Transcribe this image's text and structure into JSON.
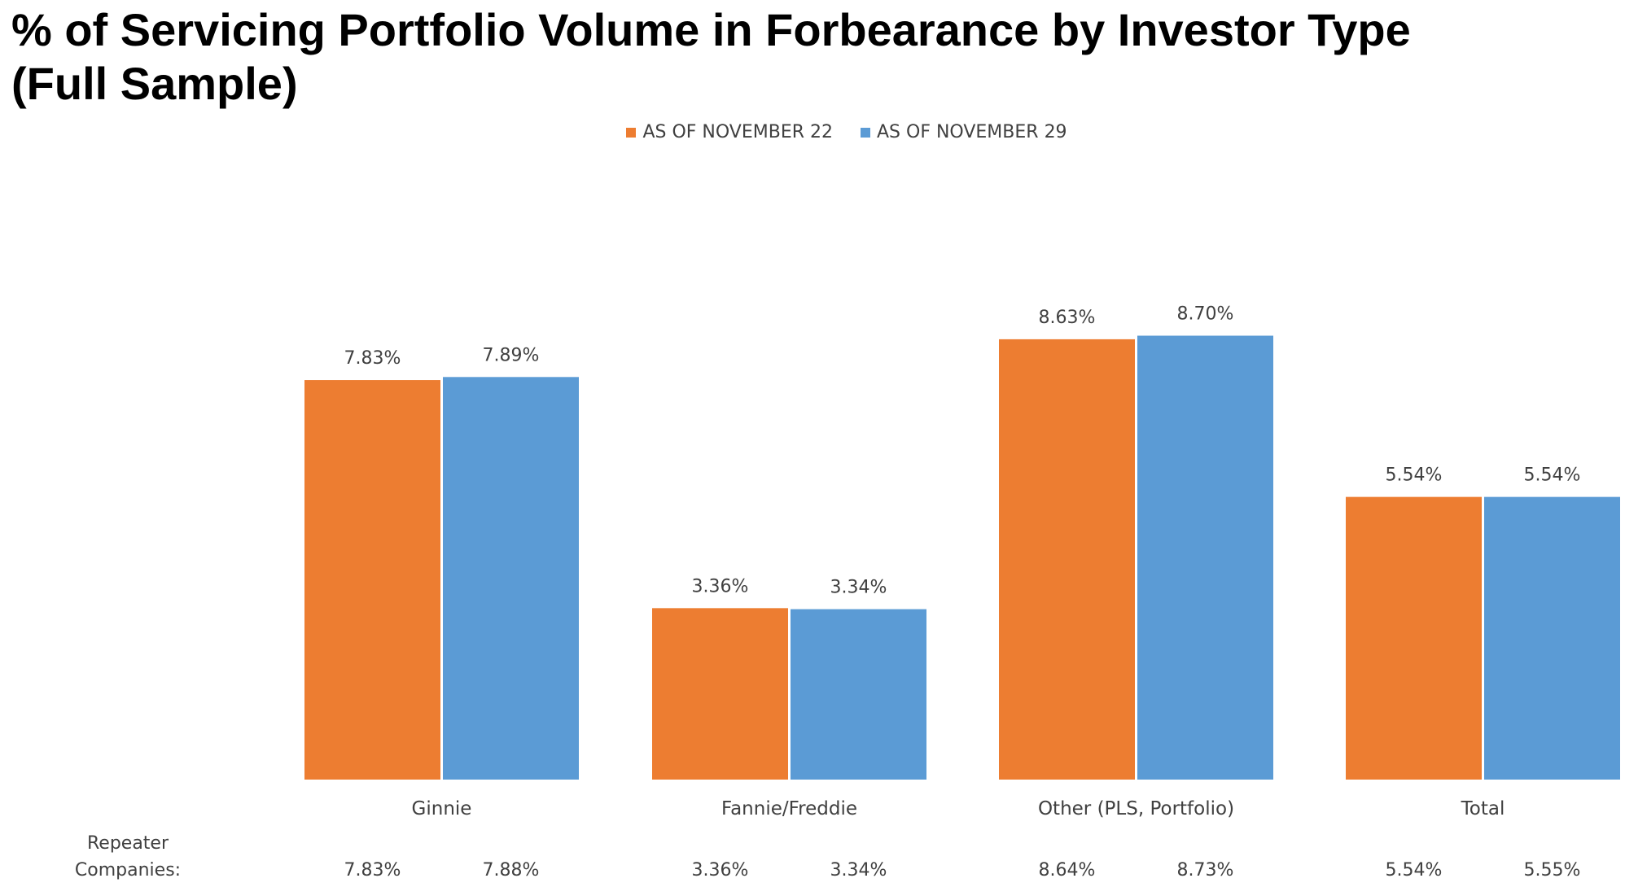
{
  "page": {
    "title_line1": "% of Servicing Portfolio Volume in Forbearance by Investor Type",
    "title_line2": "(Full Sample)"
  },
  "legend": {
    "items": [
      {
        "label": "AS OF NOVEMBER 22",
        "color": "#ED7D31"
      },
      {
        "label": "AS OF NOVEMBER 29",
        "color": "#5B9BD5"
      }
    ]
  },
  "repeater": {
    "label_line1": "Repeater",
    "label_line2": "Companies:",
    "values": [
      [
        "7.83%",
        "7.88%"
      ],
      [
        "3.36%",
        "3.34%"
      ],
      [
        "8.64%",
        "8.73%"
      ],
      [
        "5.54%",
        "5.55%"
      ]
    ]
  },
  "chart_data": {
    "type": "bar",
    "title": "% of Servicing Portfolio Volume in Forbearance by Investor Type (Full Sample)",
    "categories": [
      "Ginnie",
      "Fannie/Freddie",
      "Other (PLS, Portfolio)",
      "Total"
    ],
    "series": [
      {
        "name": "AS OF NOVEMBER 22",
        "color": "#ED7D31",
        "values": [
          7.83,
          3.36,
          8.63,
          5.54
        ],
        "labels": [
          "7.83%",
          "3.36%",
          "8.63%",
          "5.54%"
        ]
      },
      {
        "name": "AS OF NOVEMBER 29",
        "color": "#5B9BD5",
        "values": [
          7.89,
          3.34,
          8.7,
          5.54
        ],
        "labels": [
          "7.89%",
          "3.34%",
          "8.70%",
          "5.54%"
        ]
      }
    ],
    "ylim": [
      0,
      10
    ],
    "grid": false,
    "legend_position": "top-center"
  }
}
